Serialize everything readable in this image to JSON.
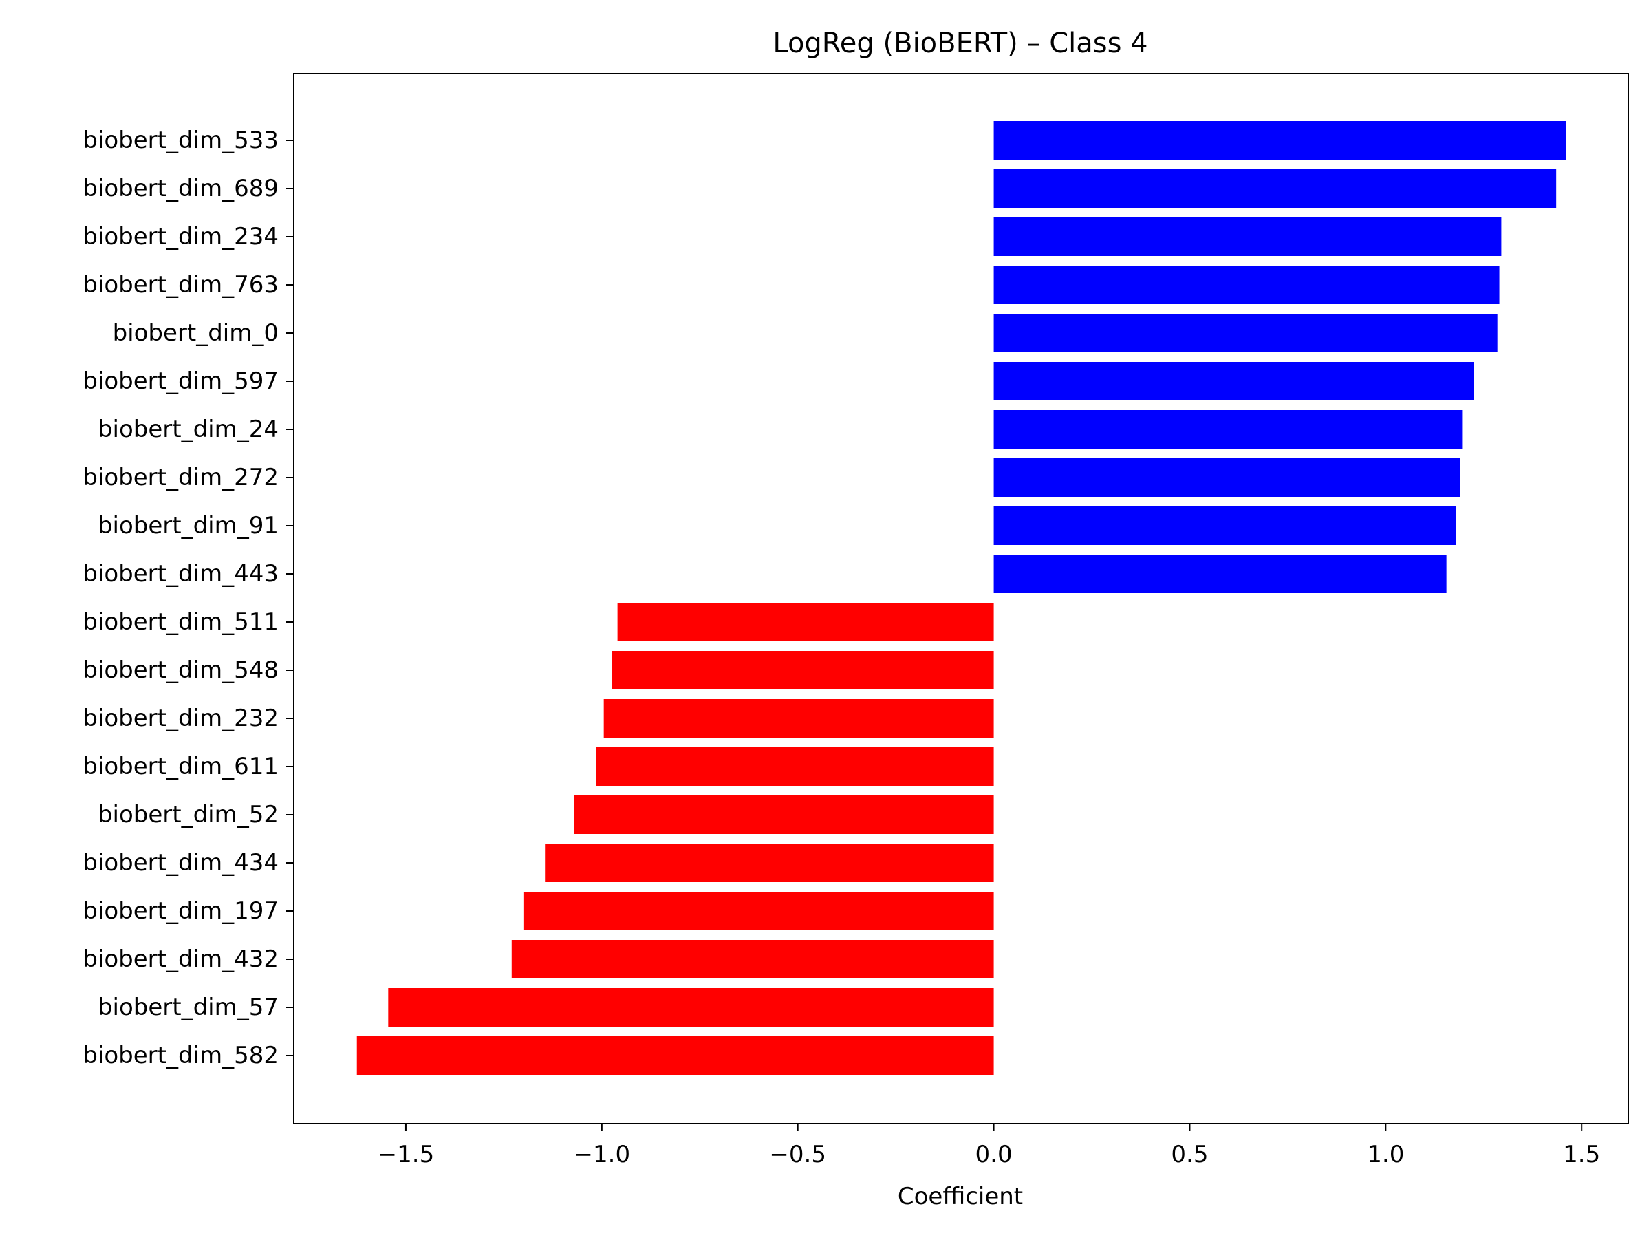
{
  "chart_data": {
    "type": "bar",
    "orientation": "horizontal",
    "title": "LogReg (BioBERT) – Class 4",
    "xlabel": "Coefficient",
    "ylabel": "",
    "xlim": [
      -1.786,
      1.619
    ],
    "x_ticks": [
      -1.5,
      -1.0,
      -0.5,
      0.0,
      0.5,
      1.0,
      1.5
    ],
    "x_tick_labels": [
      "−1.5",
      "−1.0",
      "−0.5",
      "0.0",
      "0.5",
      "1.0",
      "1.5"
    ],
    "grid": false,
    "colors": {
      "positive": "#0000ff",
      "negative": "#ff0000"
    },
    "categories": [
      "biobert_dim_533",
      "biobert_dim_689",
      "biobert_dim_234",
      "biobert_dim_763",
      "biobert_dim_0",
      "biobert_dim_597",
      "biobert_dim_24",
      "biobert_dim_272",
      "biobert_dim_91",
      "biobert_dim_443",
      "biobert_dim_511",
      "biobert_dim_548",
      "biobert_dim_232",
      "biobert_dim_611",
      "biobert_dim_52",
      "biobert_dim_434",
      "biobert_dim_197",
      "biobert_dim_432",
      "biobert_dim_57",
      "biobert_dim_582"
    ],
    "values": [
      1.46,
      1.435,
      1.295,
      1.29,
      1.285,
      1.225,
      1.195,
      1.19,
      1.18,
      1.155,
      -0.96,
      -0.975,
      -0.995,
      -1.015,
      -1.07,
      -1.145,
      -1.2,
      -1.23,
      -1.545,
      -1.625
    ]
  }
}
